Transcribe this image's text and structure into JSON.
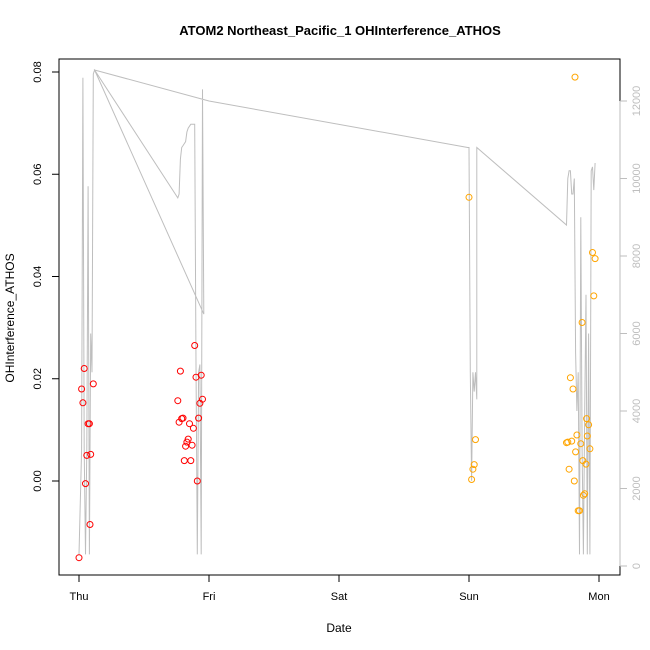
{
  "chart_data": {
    "type": "scatter",
    "title": "ATOM2 Northeast_Pacific_1 OHInterference_ATHOS",
    "xlabel": "Date",
    "ylabel": "OHInterference_ATHOS",
    "x_tick_labels": [
      "Thu",
      "Fri",
      "Sat",
      "Sun",
      "Mon"
    ],
    "x_ticks": [
      0,
      1,
      2,
      3,
      4
    ],
    "xlim": [
      -0.2,
      4.2
    ],
    "ylim": [
      -0.018,
      0.082
    ],
    "y_ticks": [
      0.0,
      0.02,
      0.04,
      0.06,
      0.08
    ],
    "y_tick_labels": [
      "0.00",
      "0.02",
      "0.04",
      "0.06",
      "0.08"
    ],
    "y2lim": [
      -200,
      13500
    ],
    "y2_ticks": [
      0,
      2000,
      4000,
      6000,
      8000,
      10000,
      12000
    ],
    "y2_tick_labels": [
      "0",
      "2000",
      "4000",
      "6000",
      "8000",
      "10000",
      "12000"
    ],
    "grid": false,
    "colors": {
      "red_points": "#ff0000",
      "orange_points": "#ffa500",
      "gray_line": "#bebebe",
      "axis": "#000000"
    },
    "series": [
      {
        "marker": "circle-open",
        "color": "#ff0000",
        "points": [
          [
            0.0,
            -0.015
          ],
          [
            0.02,
            0.018
          ],
          [
            0.03,
            0.0153
          ],
          [
            0.04,
            0.022
          ],
          [
            0.05,
            -0.0005
          ],
          [
            0.06,
            0.005
          ],
          [
            0.07,
            0.0112
          ],
          [
            0.08,
            0.0112
          ],
          [
            0.085,
            -0.0085
          ],
          [
            0.09,
            0.0052
          ],
          [
            0.11,
            0.019
          ],
          [
            0.76,
            0.0157
          ],
          [
            0.77,
            0.0115
          ],
          [
            0.78,
            0.0215
          ],
          [
            0.79,
            0.0122
          ],
          [
            0.8,
            0.0123
          ],
          [
            0.81,
            0.004
          ],
          [
            0.82,
            0.0068
          ],
          [
            0.83,
            0.0076
          ],
          [
            0.84,
            0.0082
          ],
          [
            0.85,
            0.0112
          ],
          [
            0.86,
            0.004
          ],
          [
            0.87,
            0.007
          ],
          [
            0.88,
            0.0103
          ],
          [
            0.89,
            0.0265
          ],
          [
            0.9,
            0.0203
          ],
          [
            0.91,
            0.0
          ],
          [
            0.92,
            0.0123
          ],
          [
            0.93,
            0.0152
          ],
          [
            0.94,
            0.0207
          ],
          [
            0.95,
            0.016
          ]
        ]
      },
      {
        "marker": "circle-open",
        "color": "#ffa500",
        "points": [
          [
            3.0,
            0.0555
          ],
          [
            3.02,
            0.0003
          ],
          [
            3.03,
            0.0023
          ],
          [
            3.04,
            0.0032
          ],
          [
            3.05,
            0.0081
          ],
          [
            3.75,
            0.0075
          ],
          [
            3.76,
            0.0076
          ],
          [
            3.77,
            0.0023
          ],
          [
            3.78,
            0.0202
          ],
          [
            3.79,
            0.0078
          ],
          [
            3.8,
            0.018
          ],
          [
            3.81,
            0.0
          ],
          [
            3.815,
            0.079
          ],
          [
            3.82,
            0.0057
          ],
          [
            3.83,
            0.009
          ],
          [
            3.84,
            -0.0058
          ],
          [
            3.85,
            -0.0058
          ],
          [
            3.86,
            0.0073
          ],
          [
            3.87,
            0.031
          ],
          [
            3.875,
            0.004
          ],
          [
            3.88,
            -0.0028
          ],
          [
            3.89,
            -0.0025
          ],
          [
            3.9,
            0.0033
          ],
          [
            3.905,
            0.0122
          ],
          [
            3.91,
            0.0088
          ],
          [
            3.92,
            0.011
          ],
          [
            3.93,
            0.0063
          ],
          [
            3.95,
            0.0447
          ],
          [
            3.96,
            0.0362
          ],
          [
            3.97,
            0.0435
          ]
        ]
      },
      {
        "marker": "line",
        "color": "#bebebe",
        "axis": "right",
        "points": [
          [
            0.0,
            300
          ],
          [
            0.02,
            3000
          ],
          [
            0.03,
            12600
          ],
          [
            0.04,
            3000
          ],
          [
            0.05,
            300
          ],
          [
            0.06,
            3000
          ],
          [
            0.07,
            9800
          ],
          [
            0.08,
            300
          ],
          [
            0.09,
            6000
          ],
          [
            0.1,
            5000
          ],
          [
            0.11,
            12700
          ],
          [
            0.12,
            12800
          ],
          [
            0.76,
            9500
          ],
          [
            0.77,
            9600
          ],
          [
            0.78,
            10500
          ],
          [
            0.79,
            10800
          ],
          [
            0.8,
            10850
          ],
          [
            0.81,
            10900
          ],
          [
            0.82,
            10950
          ],
          [
            0.83,
            11200
          ],
          [
            0.84,
            11300
          ],
          [
            0.85,
            11350
          ],
          [
            0.86,
            11400
          ],
          [
            0.87,
            11400
          ],
          [
            0.88,
            11400
          ],
          [
            0.89,
            11400
          ],
          [
            0.9,
            5200
          ],
          [
            0.91,
            300
          ],
          [
            0.92,
            5000
          ],
          [
            0.93,
            5200
          ],
          [
            0.94,
            300
          ],
          [
            0.95,
            12300
          ],
          [
            0.96,
            6500
          ],
          [
            0.12,
            12800
          ],
          [
            1.0,
            12000
          ],
          [
            2.99,
            10800
          ],
          [
            3.0,
            10800
          ],
          [
            3.01,
            5000
          ],
          [
            3.02,
            2200
          ],
          [
            3.03,
            5000
          ],
          [
            3.04,
            4500
          ],
          [
            3.05,
            5000
          ],
          [
            3.06,
            4300
          ],
          [
            3.06,
            10800
          ],
          [
            3.75,
            8800
          ],
          [
            3.76,
            10000
          ],
          [
            3.77,
            10200
          ],
          [
            3.78,
            10200
          ],
          [
            3.79,
            9600
          ],
          [
            3.8,
            9600
          ],
          [
            3.81,
            10000
          ],
          [
            3.82,
            5500
          ],
          [
            3.83,
            4000
          ],
          [
            3.84,
            5000
          ],
          [
            3.85,
            300
          ],
          [
            3.86,
            9000
          ],
          [
            3.87,
            3000
          ],
          [
            3.88,
            300
          ],
          [
            3.89,
            4000
          ],
          [
            3.9,
            7000
          ],
          [
            3.91,
            300
          ],
          [
            3.92,
            6000
          ],
          [
            3.93,
            300
          ],
          [
            3.94,
            10200
          ],
          [
            3.95,
            10300
          ],
          [
            3.96,
            9700
          ],
          [
            3.97,
            10400
          ]
        ]
      }
    ]
  }
}
